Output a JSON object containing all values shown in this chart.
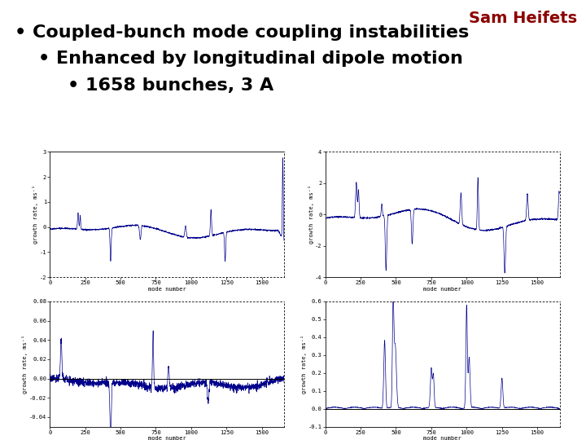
{
  "title_text": "Sam Heifets",
  "title_color": "#8B0000",
  "bullet1": "• Coupled-bunch mode coupling instabilities",
  "bullet2": "• Enhanced by longitudinal dipole motion",
  "bullet3": "• 1658 bunches, 3 A",
  "plot_color": "#00008B",
  "background_color": "#ffffff",
  "n_bunches": 1658,
  "xlabel": "mode number",
  "ylim1": [
    -2,
    3
  ],
  "ylim2": [
    -4,
    4
  ],
  "ylim3": [
    -0.05,
    0.08
  ],
  "ylim4": [
    -0.1,
    0.6
  ],
  "yticks1": [
    -2,
    -1,
    0,
    1,
    2,
    3
  ],
  "yticks2": [
    -4,
    -2,
    0,
    2,
    4
  ],
  "yticks3": [
    -0.04,
    -0.02,
    0.0,
    0.02,
    0.04,
    0.06,
    0.08
  ],
  "yticks4": [
    -0.1,
    0.0,
    0.1,
    0.2,
    0.3,
    0.4,
    0.5,
    0.6
  ],
  "xticks": [
    0,
    250,
    500,
    750,
    1000,
    1250,
    1500
  ],
  "text_fontsize": 16,
  "title_fontsize": 14,
  "plot_tick_fontsize": 5,
  "plot_label_fontsize": 5
}
